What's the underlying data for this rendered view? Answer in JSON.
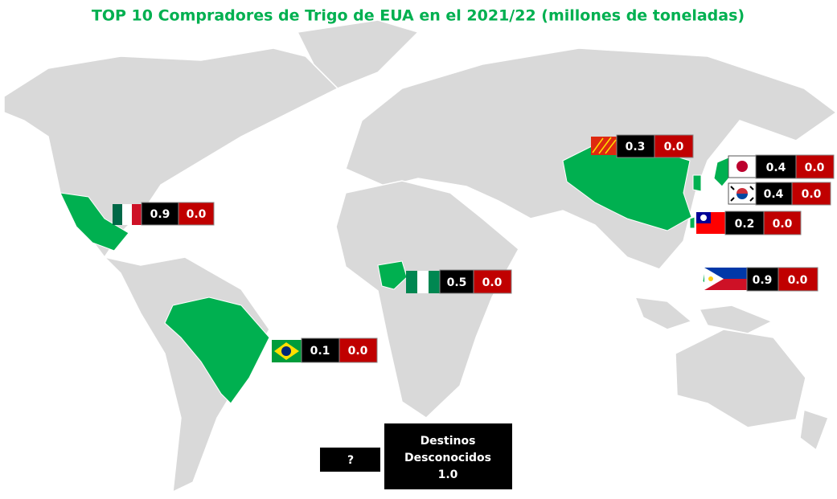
{
  "title": "TOP 10 Compradores de Trigo de EUA en el 2021/22 (millones de toneladas)",
  "buyers": [
    {
      "value": "0.9",
      "change": "0.0"
    },
    {
      "value": "0.1",
      "change": "0.0"
    },
    {
      "value": "0.5",
      "change": "0.0"
    },
    {
      "value": "0.3",
      "change": "0.0"
    },
    {
      "value": "0.4",
      "change": "0.0"
    },
    {
      "value": "0.4",
      "change": "0.0"
    },
    {
      "value": "0.2",
      "change": "0.0"
    },
    {
      "value": "0.9",
      "change": "0.0"
    }
  ],
  "unknown": {
    "icon": "?",
    "line1": "Destinos",
    "line2": "Desconocidos",
    "value": "1.0"
  }
}
